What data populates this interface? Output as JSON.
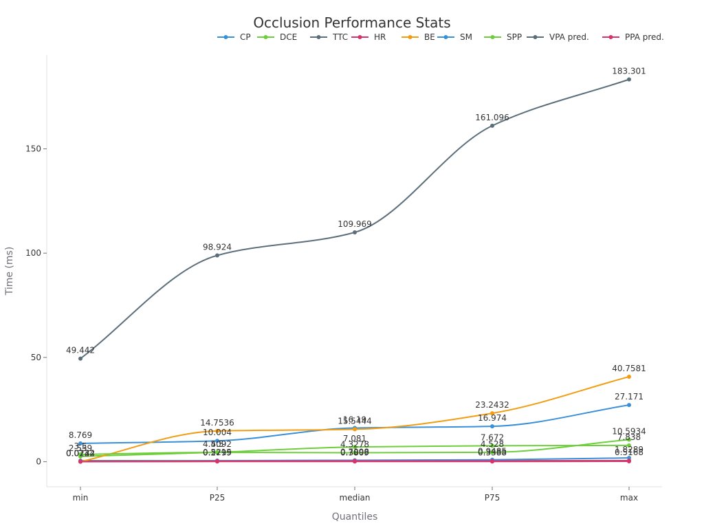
{
  "chart_data": {
    "type": "line",
    "title": "Occlusion Performance Stats",
    "xlabel": "Quantiles",
    "ylabel": "Time (ms)",
    "categories": [
      "min",
      "P25",
      "median",
      "P75",
      "max"
    ],
    "ylim": [
      -12,
      195
    ],
    "yticks": [
      0,
      50,
      100,
      150
    ],
    "legend_position": "top-right",
    "smooth": true,
    "series": [
      {
        "name": "CP",
        "color": "#3a8fd9",
        "values": [
          8.769,
          10.004,
          16.19,
          16.974,
          27.171
        ],
        "labels": [
          "8.769",
          "10.004",
          "16.19",
          "16.974",
          "27.171"
        ]
      },
      {
        "name": "DCE",
        "color": "#6ccf3a",
        "values": [
          2.559,
          4.5092,
          7.081,
          7.672,
          7.838
        ],
        "labels": [
          "2.559",
          "4.5092",
          "7.081",
          "7.672",
          "7.838"
        ]
      },
      {
        "name": "TTC",
        "color": "#5b6e7a",
        "values": [
          0.5,
          0.5,
          0.5,
          0.5,
          0.5
        ],
        "labels": [
          "",
          "",
          "",
          "",
          ""
        ]
      },
      {
        "name": "HR",
        "color": "#d6336c",
        "values": [
          0.05,
          0.1,
          0.1,
          0.1,
          0.2
        ],
        "labels": [
          "",
          "",
          "",
          "",
          ""
        ]
      },
      {
        "name": "BE",
        "color": "#f39c12",
        "values": [
          0.0122,
          14.7536,
          15.5444,
          23.2432,
          40.7581
        ],
        "labels": [
          "0.0122",
          "14.7536",
          "15.5444",
          "23.2432",
          "40.7581"
        ]
      },
      {
        "name": "SM",
        "color": "#3a8fd9",
        "values": [
          0.0244,
          0.5215,
          0.7098,
          0.9485,
          1.8289
        ],
        "labels": [
          "0.0244",
          "0.5215",
          "0.7098",
          "0.9485",
          "1.8289"
        ]
      },
      {
        "name": "SPP",
        "color": "#6ccf3a",
        "values": [
          3.5,
          4.5,
          4.3278,
          4.528,
          10.5934
        ],
        "labels": [
          "3.5",
          "4.5",
          "4.3278",
          "4.528",
          "10.5934"
        ]
      },
      {
        "name": "VPA pred.",
        "color": "#5b6e7a",
        "values": [
          49.442,
          98.924,
          109.969,
          161.096,
          183.301
        ],
        "labels": [
          "49.442",
          "98.924",
          "109.969",
          "161.096",
          "183.301"
        ]
      },
      {
        "name": "PPA pred.",
        "color": "#d6336c",
        "values": [
          0.0132,
          0.2799,
          0.3809,
          0.3388,
          0.5168
        ],
        "labels": [
          "0.0132",
          "0.2799",
          "0.3809",
          "0.3388",
          "0.5168"
        ]
      }
    ]
  }
}
